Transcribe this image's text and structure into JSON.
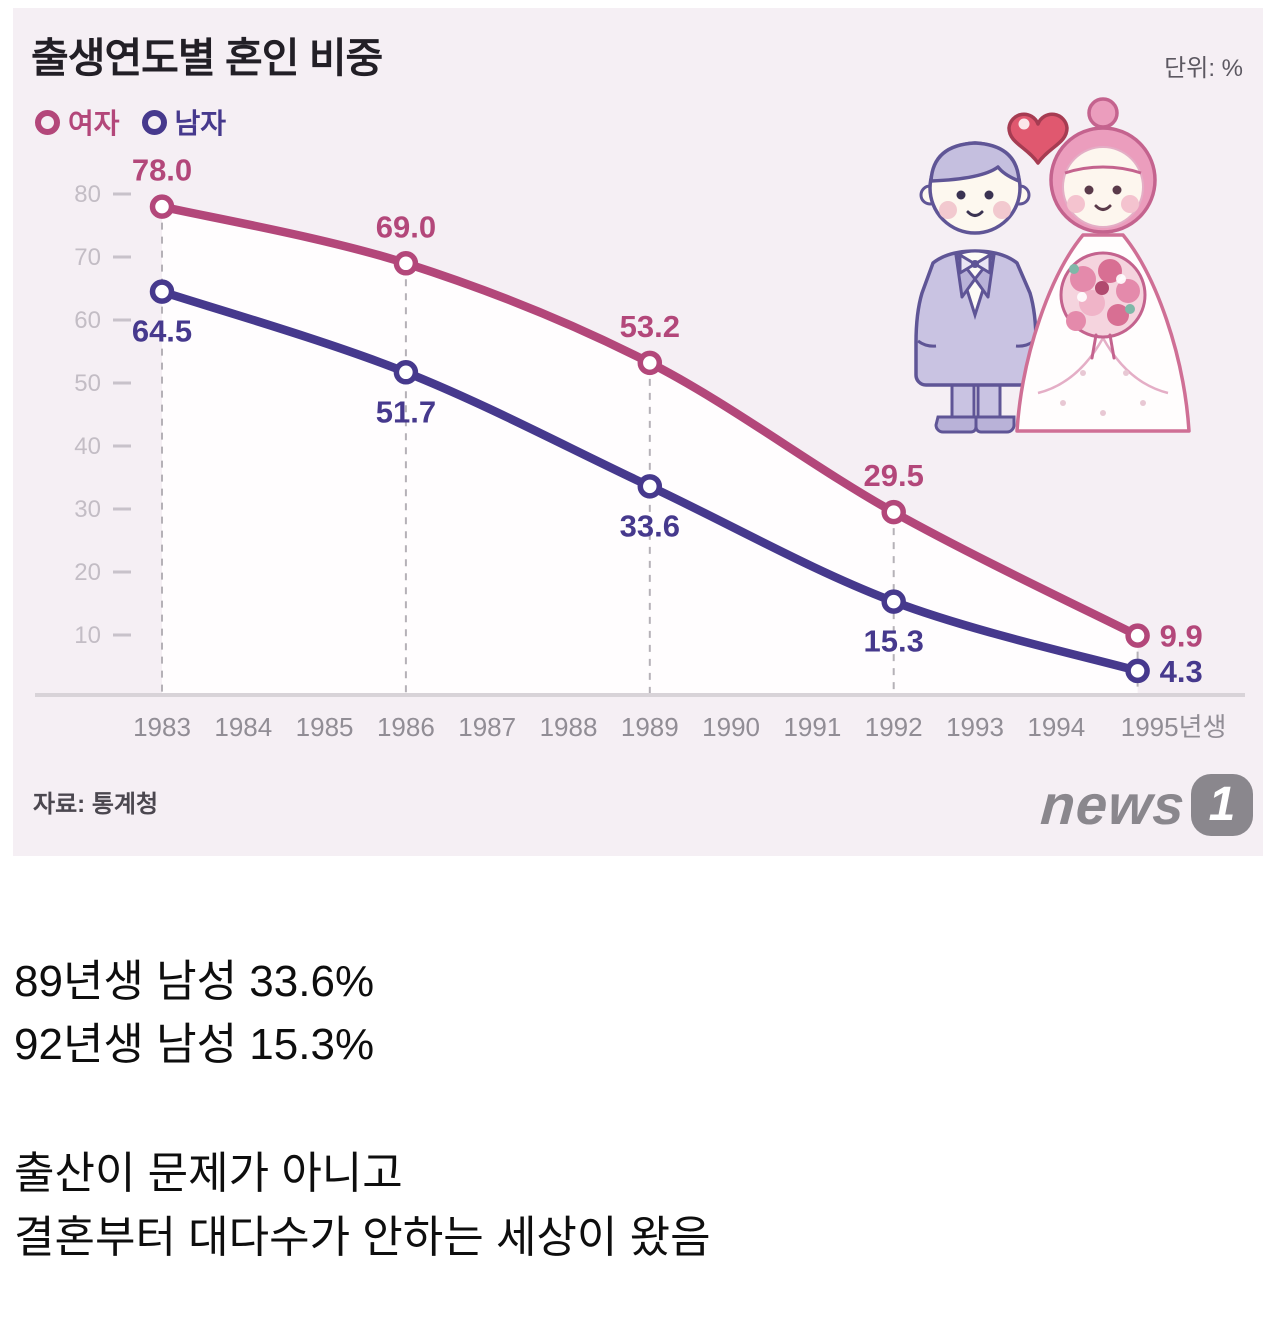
{
  "chart": {
    "title": "출생연도별 혼인 비중",
    "unit_label": "단위: %",
    "source": "자료: 통계청",
    "logo_text": "news",
    "logo_badge": "1",
    "legend": [
      {
        "label": "여자",
        "color": "#b3477a"
      },
      {
        "label": "남자",
        "color": "#46398d"
      }
    ]
  },
  "chart_data": {
    "type": "line",
    "title": "출생연도별 혼인 비중",
    "unit": "%",
    "x": [
      1983,
      1986,
      1989,
      1992,
      1995
    ],
    "x_axis_ticks": [
      "1983",
      "1984",
      "1985",
      "1986",
      "1987",
      "1988",
      "1989",
      "1990",
      "1991",
      "1992",
      "1993",
      "1994",
      "1995년생"
    ],
    "yticks": [
      10,
      20,
      30,
      40,
      50,
      60,
      70,
      80
    ],
    "ylim": [
      0,
      85
    ],
    "legend_position": "top-left",
    "grid": "dashed-vertical-at-data-points",
    "series": [
      {
        "name": "여자",
        "color": "#b3477a",
        "values": [
          78.0,
          69.0,
          53.2,
          29.5,
          9.9
        ],
        "labels": [
          "78.0",
          "69.0",
          "53.2",
          "29.5",
          "9.9"
        ]
      },
      {
        "name": "남자",
        "color": "#46398d",
        "values": [
          64.5,
          51.7,
          33.6,
          15.3,
          4.3
        ],
        "labels": [
          "64.5",
          "51.7",
          "33.6",
          "15.3",
          "4.3"
        ]
      }
    ],
    "colors": {
      "plot_bg": "#f5eff4",
      "area_fill": "#fffdfe",
      "axis_line": "#d8d3d8",
      "ytick_text": "#c3bdc5",
      "xtick_text": "#918d95",
      "dashed_line": "#b5b1b7"
    }
  },
  "caption": {
    "lines": [
      "89년생 남성 33.6%",
      "92년생 남성 15.3%",
      "출산이 문제가 아니고",
      "결혼부터 대다수가 안하는 세상이 왔음"
    ]
  }
}
